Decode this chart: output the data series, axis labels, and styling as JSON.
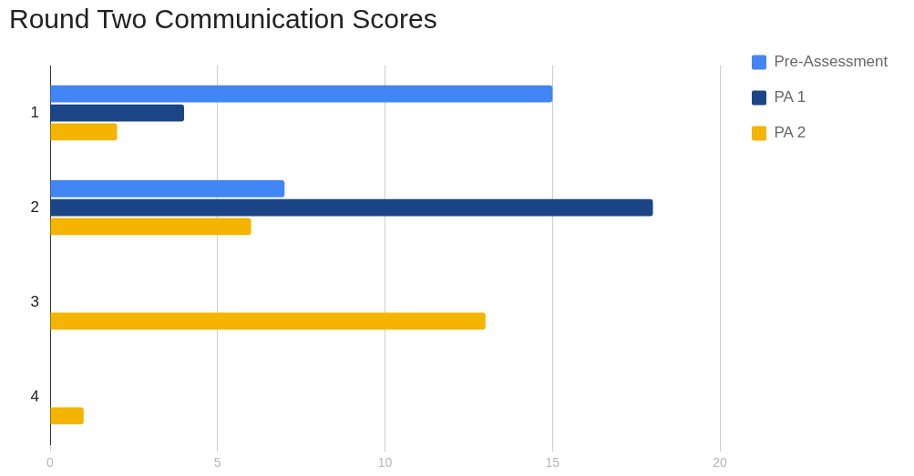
{
  "chart_data": {
    "type": "bar",
    "orientation": "horizontal",
    "title": "Round Two Communication Scores",
    "categories": [
      "1",
      "2",
      "3",
      "4"
    ],
    "series": [
      {
        "name": "Pre-Assessment",
        "color": "#4285f4",
        "values": [
          15,
          7,
          null,
          null
        ]
      },
      {
        "name": "PA 1",
        "color": "#1c4587",
        "values": [
          4,
          18,
          null,
          null
        ]
      },
      {
        "name": "PA 2",
        "color": "#f4b400",
        "values": [
          2,
          6,
          13,
          1
        ]
      }
    ],
    "xlim": [
      0,
      20
    ],
    "xticks": [
      0,
      5,
      10,
      15,
      20
    ],
    "grid": "x",
    "legend": "right"
  }
}
